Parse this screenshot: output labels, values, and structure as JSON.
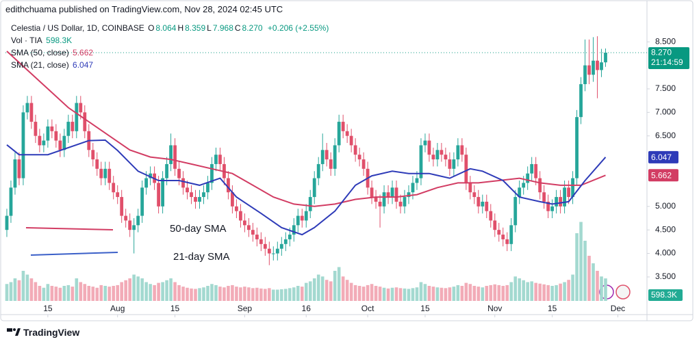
{
  "header": {
    "publisher": "edithchuama published on TradingView.com, Nov 28, 2024 02:45 UTC"
  },
  "footer": {
    "brand": "TradingView"
  },
  "chart_data": {
    "type": "candlestick",
    "title": "Celestia / US Dollar, 1D, COINBASE",
    "quote": [
      {
        "key": "O",
        "value": "8.064"
      },
      {
        "key": "H",
        "value": "8.359"
      },
      {
        "key": "L",
        "value": "7.968"
      },
      {
        "key": "C",
        "value": "8.270"
      }
    ],
    "change": "+0.206 (+2.55%)",
    "last_price": {
      "label": "8.270",
      "countdown": "21:14:59",
      "value": 8.27,
      "color": "#089981"
    },
    "up_color": "#26a69a",
    "down_color": "#e04f6a",
    "volume_up_color": "#a3d9d0",
    "volume_down_color": "#f2abb7",
    "xlim": [
      -0.33,
      156.1
    ],
    "xticks": [
      {
        "value": 10,
        "label": "15"
      },
      {
        "value": 27,
        "label": "Aug"
      },
      {
        "value": 41,
        "label": "15"
      },
      {
        "value": 58,
        "label": "Sep"
      },
      {
        "value": 73,
        "label": "16"
      },
      {
        "value": 88,
        "label": "Oct"
      },
      {
        "value": 102,
        "label": "15"
      },
      {
        "value": 119,
        "label": "Nov"
      },
      {
        "value": 133,
        "label": "15"
      },
      {
        "value": 149,
        "label": "Dec"
      }
    ],
    "ylim": [
      2.99,
      9.39
    ],
    "yticks": [
      {
        "value": 3.5,
        "label": "3.500"
      },
      {
        "value": 4,
        "label": "4.000"
      },
      {
        "value": 4.5,
        "label": "4.500"
      },
      {
        "value": 5,
        "label": "5.000"
      },
      {
        "value": 6.5,
        "label": "6.500"
      },
      {
        "value": 7,
        "label": "7.000"
      },
      {
        "value": 7.5,
        "label": "7.500"
      },
      {
        "value": 8.5,
        "label": "8.500"
      }
    ],
    "y2lim": [
      0,
      8000
    ],
    "ohlc": [
      [
        4.5,
        4.95,
        4.35,
        4.8
      ],
      [
        4.8,
        5.55,
        4.65,
        5.4
      ],
      [
        5.4,
        6.15,
        5.25,
        6.0
      ],
      [
        6.0,
        6.15,
        5.45,
        5.6
      ],
      [
        5.6,
        7.15,
        5.45,
        7.0
      ],
      [
        7.0,
        7.35,
        6.85,
        7.2
      ],
      [
        7.2,
        7.35,
        6.65,
        6.8
      ],
      [
        6.8,
        6.95,
        6.35,
        6.5
      ],
      [
        6.5,
        6.65,
        6.15,
        6.3
      ],
      [
        6.3,
        6.55,
        6.15,
        6.4
      ],
      [
        6.4,
        6.85,
        6.25,
        6.7
      ],
      [
        6.7,
        6.85,
        6.45,
        6.6
      ],
      [
        6.6,
        6.75,
        6.25,
        6.4
      ],
      [
        6.4,
        6.55,
        6.05,
        6.2
      ],
      [
        6.2,
        6.65,
        6.05,
        6.5
      ],
      [
        6.5,
        6.95,
        6.35,
        6.8
      ],
      [
        6.8,
        6.95,
        6.45,
        6.6
      ],
      [
        6.6,
        7.35,
        6.45,
        7.2
      ],
      [
        7.2,
        7.35,
        6.85,
        7.0
      ],
      [
        7.0,
        7.15,
        6.45,
        6.6
      ],
      [
        6.6,
        6.75,
        6.05,
        6.2
      ],
      [
        6.2,
        6.35,
        5.85,
        6.0
      ],
      [
        6.0,
        6.15,
        5.65,
        5.8
      ],
      [
        5.8,
        5.95,
        5.45,
        5.6
      ],
      [
        5.6,
        5.95,
        5.45,
        5.8
      ],
      [
        5.8,
        5.95,
        5.35,
        5.5
      ],
      [
        5.5,
        5.65,
        5.15,
        5.3
      ],
      [
        5.3,
        5.45,
        5.05,
        5.2
      ],
      [
        5.2,
        5.35,
        4.65,
        4.8
      ],
      [
        4.8,
        4.95,
        4.55,
        4.7
      ],
      [
        4.7,
        4.85,
        4.35,
        4.5
      ],
      [
        4.5,
        4.75,
        4.0,
        4.6
      ],
      [
        4.6,
        4.95,
        4.45,
        4.8
      ],
      [
        4.8,
        5.55,
        4.65,
        5.4
      ],
      [
        5.4,
        5.75,
        5.25,
        5.6
      ],
      [
        5.6,
        5.85,
        5.45,
        5.7
      ],
      [
        5.7,
        5.85,
        5.35,
        5.5
      ],
      [
        5.5,
        5.65,
        4.85,
        5.0
      ],
      [
        5.0,
        5.75,
        4.85,
        5.6
      ],
      [
        5.6,
        6.05,
        5.45,
        5.9
      ],
      [
        5.9,
        6.55,
        5.75,
        6.3
      ],
      [
        6.3,
        6.45,
        5.65,
        5.8
      ],
      [
        5.8,
        5.95,
        5.45,
        5.6
      ],
      [
        5.6,
        5.75,
        5.25,
        5.4
      ],
      [
        5.4,
        5.55,
        5.15,
        5.3
      ],
      [
        5.3,
        5.45,
        5.05,
        5.2
      ],
      [
        5.2,
        5.35,
        4.95,
        5.1
      ],
      [
        5.1,
        5.35,
        4.95,
        5.2
      ],
      [
        5.2,
        5.45,
        5.05,
        5.3
      ],
      [
        5.3,
        5.65,
        5.15,
        5.5
      ],
      [
        5.5,
        6.05,
        5.35,
        5.9
      ],
      [
        5.9,
        6.25,
        5.75,
        6.1
      ],
      [
        6.1,
        6.25,
        5.75,
        5.9
      ],
      [
        5.9,
        6.05,
        5.45,
        5.6
      ],
      [
        5.6,
        5.75,
        5.15,
        5.3
      ],
      [
        5.3,
        5.45,
        4.85,
        5.0
      ],
      [
        5.0,
        5.15,
        4.75,
        4.9
      ],
      [
        4.9,
        5.05,
        4.55,
        4.7
      ],
      [
        4.7,
        4.85,
        4.45,
        4.6
      ],
      [
        4.6,
        4.75,
        4.35,
        4.5
      ],
      [
        4.5,
        4.65,
        4.25,
        4.4
      ],
      [
        4.4,
        4.55,
        4.15,
        4.3
      ],
      [
        4.3,
        4.45,
        4.05,
        4.2
      ],
      [
        4.2,
        4.35,
        3.95,
        4.1
      ],
      [
        4.1,
        4.25,
        3.75,
        4.0
      ],
      [
        4.0,
        4.15,
        3.85,
        4.0
      ],
      [
        4.0,
        4.25,
        3.85,
        4.1
      ],
      [
        4.1,
        4.35,
        3.95,
        4.2
      ],
      [
        4.2,
        4.45,
        4.05,
        4.3
      ],
      [
        4.3,
        4.55,
        4.15,
        4.4
      ],
      [
        4.4,
        4.75,
        4.25,
        4.6
      ],
      [
        4.6,
        4.95,
        4.45,
        4.8
      ],
      [
        4.8,
        4.95,
        4.55,
        4.7
      ],
      [
        4.7,
        5.05,
        4.55,
        4.9
      ],
      [
        4.9,
        5.35,
        4.75,
        5.2
      ],
      [
        5.2,
        5.75,
        5.05,
        5.6
      ],
      [
        5.6,
        6.05,
        5.45,
        5.9
      ],
      [
        5.9,
        6.55,
        5.75,
        6.2
      ],
      [
        6.2,
        6.35,
        5.85,
        6.0
      ],
      [
        6.0,
        6.15,
        5.65,
        5.8
      ],
      [
        5.8,
        6.45,
        5.65,
        6.3
      ],
      [
        6.3,
        6.95,
        6.15,
        6.8
      ],
      [
        6.8,
        6.95,
        6.45,
        6.6
      ],
      [
        6.6,
        6.75,
        6.35,
        6.5
      ],
      [
        6.5,
        6.65,
        6.15,
        6.3
      ],
      [
        6.3,
        6.45,
        5.95,
        6.1
      ],
      [
        6.1,
        6.25,
        5.85,
        6.0
      ],
      [
        6.0,
        6.15,
        5.65,
        5.8
      ],
      [
        5.8,
        5.95,
        5.25,
        5.4
      ],
      [
        5.4,
        5.55,
        5.05,
        5.2
      ],
      [
        5.2,
        5.35,
        4.95,
        5.1
      ],
      [
        5.1,
        5.25,
        4.55,
        5.0
      ],
      [
        5.0,
        5.45,
        4.85,
        5.3
      ],
      [
        5.3,
        5.45,
        5.05,
        5.2
      ],
      [
        5.2,
        5.55,
        5.05,
        5.4
      ],
      [
        5.4,
        5.55,
        4.95,
        5.1
      ],
      [
        5.1,
        5.25,
        4.85,
        5.0
      ],
      [
        5.0,
        5.35,
        4.85,
        5.2
      ],
      [
        5.2,
        5.45,
        5.05,
        5.3
      ],
      [
        5.3,
        5.65,
        5.15,
        5.5
      ],
      [
        5.5,
        5.75,
        5.35,
        5.6
      ],
      [
        5.6,
        6.45,
        5.45,
        6.3
      ],
      [
        6.3,
        6.55,
        6.15,
        6.4
      ],
      [
        6.4,
        6.55,
        5.95,
        6.1
      ],
      [
        6.1,
        6.25,
        5.85,
        6.0
      ],
      [
        6.0,
        6.35,
        5.85,
        6.2
      ],
      [
        6.2,
        6.35,
        5.95,
        6.1
      ],
      [
        6.1,
        6.25,
        5.85,
        6.0
      ],
      [
        6.0,
        6.15,
        5.65,
        5.8
      ],
      [
        5.8,
        6.15,
        5.65,
        6.0
      ],
      [
        6.0,
        6.45,
        5.85,
        6.3
      ],
      [
        6.3,
        6.45,
        5.95,
        6.1
      ],
      [
        6.1,
        6.25,
        5.35,
        5.5
      ],
      [
        5.5,
        5.65,
        5.15,
        5.3
      ],
      [
        5.3,
        5.45,
        5.05,
        5.2
      ],
      [
        5.2,
        5.35,
        4.85,
        5.0
      ],
      [
        5.0,
        5.25,
        4.85,
        5.1
      ],
      [
        5.1,
        5.25,
        4.75,
        4.9
      ],
      [
        4.9,
        5.05,
        4.55,
        4.7
      ],
      [
        4.7,
        4.85,
        4.35,
        4.5
      ],
      [
        4.5,
        4.65,
        4.25,
        4.4
      ],
      [
        4.4,
        4.55,
        4.15,
        4.3
      ],
      [
        4.3,
        4.45,
        4.05,
        4.2
      ],
      [
        4.2,
        4.75,
        4.05,
        4.6
      ],
      [
        4.6,
        5.35,
        4.45,
        5.2
      ],
      [
        5.2,
        5.55,
        5.05,
        5.4
      ],
      [
        5.4,
        5.65,
        5.25,
        5.5
      ],
      [
        5.5,
        5.85,
        5.35,
        5.7
      ],
      [
        5.7,
        6.05,
        5.55,
        5.9
      ],
      [
        5.9,
        6.05,
        5.45,
        5.6
      ],
      [
        5.6,
        5.75,
        5.15,
        5.3
      ],
      [
        5.3,
        5.45,
        4.95,
        5.1
      ],
      [
        5.1,
        5.25,
        4.75,
        4.9
      ],
      [
        4.9,
        5.15,
        4.75,
        5.0
      ],
      [
        5.0,
        5.35,
        4.85,
        5.2
      ],
      [
        5.2,
        5.35,
        4.85,
        5.0
      ],
      [
        5.0,
        5.55,
        4.85,
        5.4
      ],
      [
        5.4,
        5.55,
        5.05,
        5.2
      ],
      [
        5.2,
        5.75,
        5.05,
        5.6
      ],
      [
        5.6,
        7.05,
        5.45,
        6.9
      ],
      [
        6.9,
        7.75,
        6.75,
        7.6
      ],
      [
        7.6,
        8.55,
        7.45,
        8.0
      ],
      [
        8.0,
        8.55,
        7.6,
        7.8
      ],
      [
        7.8,
        8.6,
        7.65,
        8.1
      ],
      [
        8.1,
        8.62,
        7.3,
        7.9
      ],
      [
        7.9,
        8.35,
        7.75,
        8.064
      ],
      [
        8.064,
        8.359,
        7.968,
        8.27
      ]
    ],
    "volume": {
      "name": "Vol · TIA",
      "axis": "y2",
      "value_label": "598.3K",
      "badge_color": "#22ab94",
      "values": [
        450,
        500,
        600,
        550,
        800,
        700,
        600,
        500,
        400,
        350,
        450,
        400,
        380,
        350,
        400,
        420,
        380,
        600,
        500,
        450,
        400,
        380,
        350,
        420,
        400,
        380,
        400,
        420,
        500,
        550,
        600,
        700,
        650,
        600,
        500,
        450,
        420,
        480,
        500,
        550,
        600,
        500,
        420,
        380,
        350,
        330,
        320,
        340,
        360,
        400,
        450,
        420,
        380,
        360,
        400,
        420,
        380,
        360,
        380,
        360,
        340,
        350,
        330,
        320,
        340,
        300,
        300,
        310,
        320,
        340,
        360,
        400,
        380,
        480,
        520,
        600,
        700,
        650,
        560,
        520,
        800,
        900,
        650,
        560,
        480,
        420,
        400,
        380,
        420,
        450,
        400,
        380,
        350,
        330,
        350,
        360,
        340,
        330,
        320,
        340,
        360,
        500,
        450,
        400,
        380,
        360,
        350,
        340,
        360,
        380,
        420,
        400,
        480,
        450,
        400,
        380,
        360,
        400,
        420,
        440,
        420,
        400,
        420,
        500,
        650,
        600,
        550,
        500,
        520,
        480,
        460,
        440,
        420,
        400,
        420,
        460,
        500,
        560,
        700,
        1800,
        2100,
        1600,
        1200,
        1000,
        800,
        650,
        598.3
      ]
    },
    "series": [
      {
        "name": "SMA (50, close)",
        "color": "#d23c63",
        "value_label": "5.662",
        "x": [
          0,
          5,
          10,
          15,
          20,
          25,
          30,
          35,
          40,
          45,
          50,
          55,
          60,
          65,
          70,
          75,
          80,
          85,
          90,
          95,
          100,
          105,
          110,
          115,
          120,
          125,
          130,
          135,
          140,
          146
        ],
        "values": [
          8.3,
          7.9,
          7.5,
          7.1,
          6.8,
          6.5,
          6.2,
          6.05,
          6.0,
          5.9,
          5.8,
          5.7,
          5.45,
          5.2,
          5.05,
          5.0,
          5.05,
          5.15,
          5.2,
          5.2,
          5.25,
          5.4,
          5.5,
          5.5,
          5.55,
          5.6,
          5.5,
          5.45,
          5.45,
          5.662
        ]
      },
      {
        "name": "SMA (21, close)",
        "color": "#2e3bb8",
        "value_label": "6.047",
        "x": [
          0,
          3,
          10,
          20,
          24,
          27,
          32,
          37,
          42,
          47,
          52,
          56,
          62,
          67,
          72,
          75,
          80,
          85,
          89,
          94,
          98,
          103,
          108,
          113,
          116,
          121,
          125,
          130,
          133,
          137,
          141,
          146
        ],
        "values": [
          6.31,
          6.1,
          6.1,
          6.4,
          6.41,
          6.19,
          5.75,
          5.55,
          5.55,
          5.45,
          5.6,
          5.2,
          4.85,
          4.55,
          4.4,
          4.55,
          4.9,
          5.45,
          5.65,
          5.75,
          5.7,
          5.7,
          5.6,
          5.8,
          5.75,
          5.55,
          5.2,
          5.1,
          5.05,
          5.1,
          5.55,
          6.047
        ]
      }
    ],
    "annotations": [
      {
        "text": "50-day SMA",
        "color": "#d23c63"
      },
      {
        "text": "21-day SMA",
        "color": "#3a5fc8"
      }
    ]
  }
}
